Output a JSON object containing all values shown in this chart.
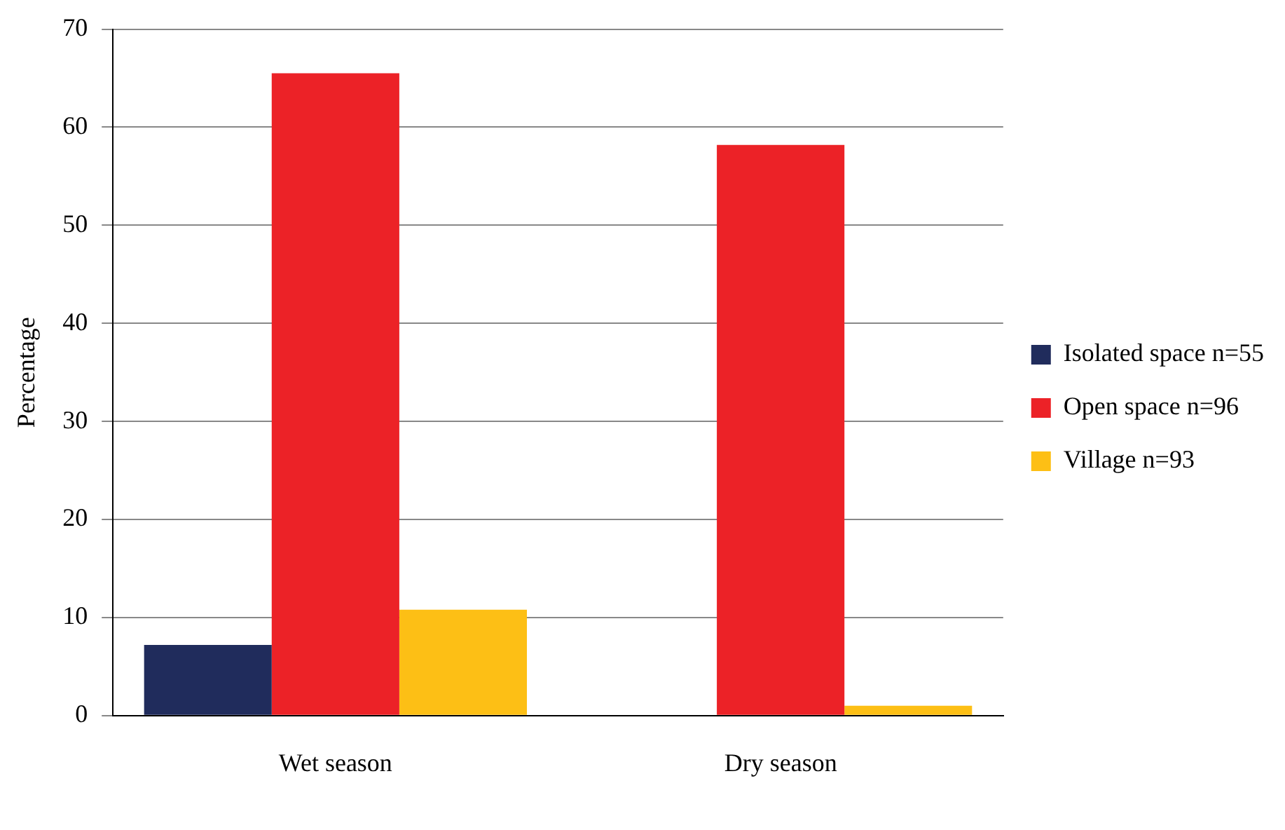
{
  "chart_data": {
    "type": "bar",
    "ylabel": "Percentage",
    "categories": [
      "Wet season",
      "Dry season"
    ],
    "series": [
      {
        "name": "Isolated space n=55",
        "color": "#202c5c",
        "values": [
          7.2,
          0
        ]
      },
      {
        "name": "Open space n=96",
        "color": "#ec2227",
        "values": [
          65.5,
          58.2
        ]
      },
      {
        "name": "Village n=93",
        "color": "#fdbf15",
        "values": [
          10.8,
          1
        ]
      }
    ],
    "ylim": [
      0,
      70
    ],
    "yticks": [
      0,
      10,
      20,
      30,
      40,
      50,
      60,
      70
    ],
    "grid": "y",
    "legend": "right"
  }
}
